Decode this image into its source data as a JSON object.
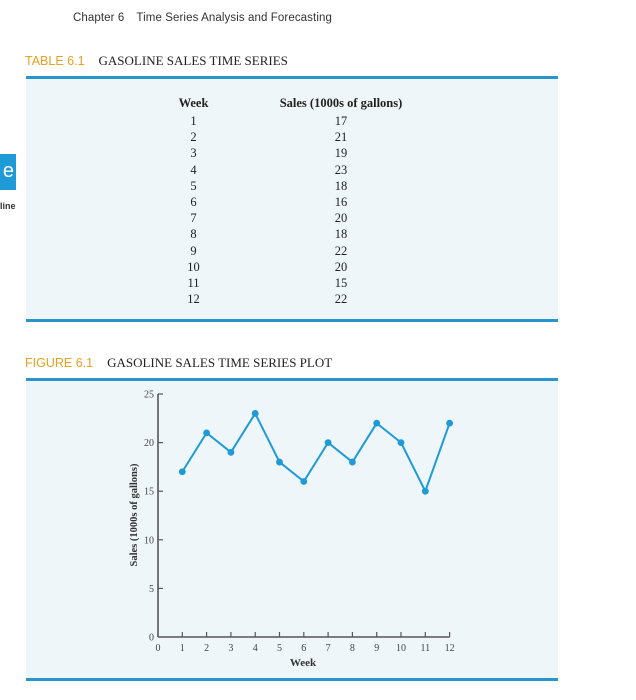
{
  "running_head": {
    "chapter": "Chapter 6",
    "title": "Time Series Analysis and Forecasting"
  },
  "side_tab": {
    "glyph": "e",
    "label": "line"
  },
  "table": {
    "number": "TABLE 6.1",
    "title": "GASOLINE SALES TIME SERIES",
    "columns": [
      "Week",
      "Sales (1000s of gallons)"
    ],
    "rows": [
      [
        "1",
        "17"
      ],
      [
        "2",
        "21"
      ],
      [
        "3",
        "19"
      ],
      [
        "4",
        "23"
      ],
      [
        "5",
        "18"
      ],
      [
        "6",
        "16"
      ],
      [
        "7",
        "20"
      ],
      [
        "8",
        "18"
      ],
      [
        "9",
        "22"
      ],
      [
        "10",
        "20"
      ],
      [
        "11",
        "15"
      ],
      [
        "12",
        "22"
      ]
    ]
  },
  "figure": {
    "number": "FIGURE 6.1",
    "title": "GASOLINE SALES TIME SERIES PLOT"
  },
  "colors": {
    "accent": "#2a94cc",
    "caption_number": "#e8a020",
    "panel_bg": "#eef6fa",
    "line": "#1e9ad6"
  },
  "chart_data": {
    "type": "line",
    "title": "GASOLINE SALES TIME SERIES PLOT",
    "xlabel": "Week",
    "ylabel": "Sales (1000s of gallons)",
    "x": [
      1,
      2,
      3,
      4,
      5,
      6,
      7,
      8,
      9,
      10,
      11,
      12
    ],
    "series": [
      {
        "name": "Sales",
        "values": [
          17,
          21,
          19,
          23,
          18,
          16,
          20,
          18,
          22,
          20,
          15,
          22
        ]
      }
    ],
    "xlim": [
      0,
      12
    ],
    "ylim": [
      0,
      25
    ],
    "xticks": [
      "0",
      "1",
      "2",
      "3",
      "4",
      "5",
      "6",
      "7",
      "8",
      "9",
      "10",
      "11",
      "12"
    ],
    "yticks": [
      "0",
      "5",
      "10",
      "15",
      "20",
      "25"
    ],
    "grid": false,
    "markers": true
  }
}
